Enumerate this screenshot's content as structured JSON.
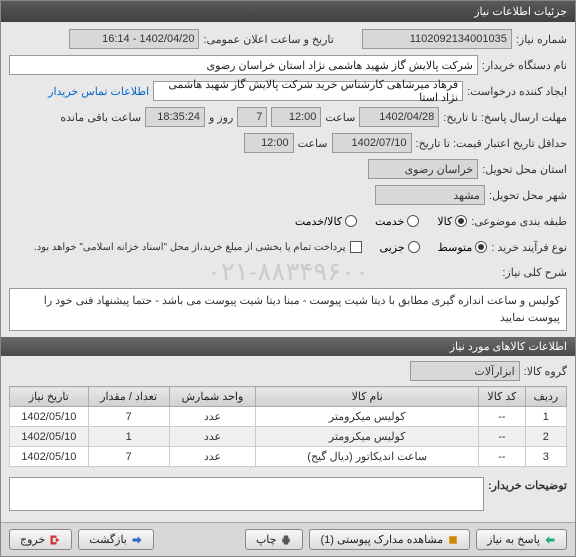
{
  "window": {
    "title": "جزئیات اطلاعات نیاز"
  },
  "header": {
    "need_no_label": "شماره نیاز:",
    "need_no": "1102092134001035",
    "announce_label": "تاریخ و ساعت اعلان عمومی:",
    "announce_value": "1402/04/20 - 16:14",
    "buyer_label": "نام دستگاه خریدار:",
    "buyer_value": "شرکت پالایش گاز شهید هاشمی نژاد   استان خراسان رضوی",
    "requester_label": "ایجاد کننده درخواست:",
    "requester_value": "فرهاد میرشاهی کارشناس خرید شرکت پالایش گاز شهید هاشمی نژاد   استا",
    "contact_link": "اطلاعات تماس خریدار",
    "reply_deadline_label": "مهلت ارسال پاسخ: تا تاریخ:",
    "reply_deadline_date": "1402/04/28",
    "reply_deadline_time_label": "ساعت",
    "reply_deadline_time": "12:00",
    "days_label": "روز و",
    "days": "7",
    "remain_time": "18:35:24",
    "remain_label": "ساعت باقی مانده",
    "min_valid_label": "حداقل تاریخ اعتبار قیمت: تا تاریخ:",
    "min_valid_date": "1402/07/10",
    "min_valid_time_label": "ساعت",
    "min_valid_time": "12:00",
    "province_label": "استان محل تحویل:",
    "province": "خراسان رضوی",
    "city_label": "شهر محل تحویل:",
    "city": "مشهد",
    "category_label": "طبقه بندی موضوعی:",
    "cat_options": [
      "کالا",
      "خدمت",
      "کالا/خدمت"
    ],
    "cat_selected": 0,
    "process_label": "نوع فرآیند خرید :",
    "proc_options": [
      "متوسط",
      "جزیی"
    ],
    "proc_selected": 0,
    "pay_note": "پرداخت تمام یا بخشی از مبلغ خرید،از محل \"اسناد خزانه اسلامی\" خواهد بود.",
    "desc_label": "شرح کلی نیاز:",
    "desc_text": "کولیس و ساعت اندازه گیری مطابق با دیتا شیت پیوست - مبنا دیتا شیت پیوست می باشد - حتما پیشنهاد فنی خود را پیوست نمایید"
  },
  "items_section": {
    "title": "اطلاعات کالاهای مورد نیاز",
    "group_label": "گروه کالا:",
    "group_value": "ابزارآلات",
    "columns": [
      "ردیف",
      "کد کالا",
      "نام کالا",
      "واحد شمارش",
      "تعداد / مقدار",
      "تاریخ نیاز"
    ],
    "rows": [
      [
        "1",
        "--",
        "کولیس میکرومتر",
        "عدد",
        "7",
        "1402/05/10"
      ],
      [
        "2",
        "--",
        "کولیس میکرومتر",
        "عدد",
        "1",
        "1402/05/10"
      ],
      [
        "3",
        "--",
        "ساعت اندیکاتور (دیال گیج)",
        "عدد",
        "7",
        "1402/05/10"
      ]
    ]
  },
  "remarks": {
    "label": "توضیحات خریدار:"
  },
  "footer": {
    "reply": "پاسخ به نیاز",
    "attachments": "مشاهده مدارک پیوستی  (1)",
    "print": "چاپ",
    "back": "بازگشت",
    "exit": "خروج"
  },
  "watermark": "۰۲۱-۸۸۳۴۹۶۰۰",
  "colors": {
    "header_bg": "#4a4a4a",
    "link": "#0066cc",
    "field_bg": "#ffffff",
    "field_gray": "#d8d8d8"
  }
}
